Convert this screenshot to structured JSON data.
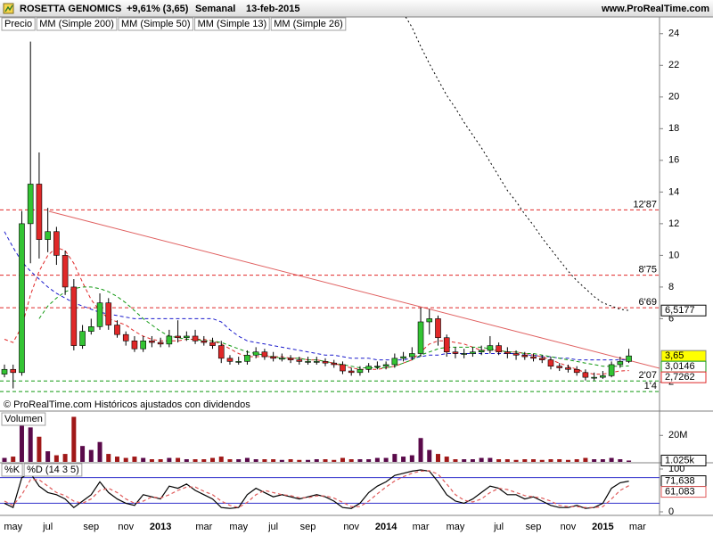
{
  "chart_data": [
    {
      "type": "candlestick",
      "title": "ROSETTA GENOMICS",
      "change": "+9,61% (3,65)",
      "period": "Semanal",
      "date": "13-feb-2015",
      "source": "www.ProRealTime.com",
      "footer": "© ProRealTime.com  Históricos ajustados con dividendos",
      "categories": [
        null,
        "may",
        null,
        null,
        null,
        "jul",
        null,
        null,
        null,
        null,
        "sep",
        null,
        null,
        null,
        "nov",
        null,
        null,
        null,
        "2013",
        null,
        null,
        null,
        null,
        "mar",
        null,
        null,
        null,
        "may",
        null,
        null,
        null,
        "jul",
        null,
        null,
        null,
        "sep",
        null,
        null,
        null,
        null,
        "nov",
        null,
        null,
        null,
        "2014",
        null,
        null,
        null,
        "mar",
        null,
        null,
        null,
        "may",
        null,
        null,
        null,
        null,
        "jul",
        null,
        null,
        null,
        "sep",
        null,
        null,
        null,
        "nov",
        null,
        null,
        null,
        "2015",
        null,
        null,
        null,
        "mar"
      ],
      "price": {
        "name": "Precio",
        "up_color": "#33c433",
        "down_color": "#e02828",
        "last_label": "3,65",
        "label_color": "#ffff00",
        "open": [
          2.5,
          2.8,
          2.6,
          12,
          14.5,
          11,
          11.5,
          10,
          8,
          4.3,
          5.2,
          5.5,
          7,
          5.6,
          5,
          4.6,
          4.1,
          4.6,
          4.5,
          4.4,
          4.9,
          4.8,
          4.9,
          4.6,
          4.5,
          4.3,
          3.5,
          3.3,
          3.3,
          3.7,
          3.9,
          3.6,
          3.5,
          3.5,
          3.4,
          3.3,
          3.3,
          3.3,
          3.2,
          3.1,
          2.7,
          2.6,
          2.8,
          3.0,
          3.0,
          3.1,
          3.5,
          3.6,
          3.8,
          5.8,
          6.0,
          4.8,
          3.9,
          3.8,
          3.8,
          3.9,
          4.0,
          4.3,
          3.9,
          3.8,
          3.7,
          3.6,
          3.5,
          3.4,
          3.0,
          2.9,
          2.8,
          2.6,
          2.3,
          2.3,
          2.4,
          3.1,
          3.3,
          null
        ],
        "high": [
          3.1,
          3.1,
          12.8,
          23.5,
          16.5,
          13,
          11.8,
          10.3,
          8.5,
          5.6,
          6.0,
          7.6,
          7.3,
          5.9,
          5.2,
          4.9,
          4.9,
          4.9,
          4.8,
          5.3,
          5.9,
          5.2,
          5.3,
          4.9,
          4.8,
          4.6,
          3.7,
          3.6,
          4.0,
          4.2,
          4.1,
          3.9,
          3.8,
          3.7,
          3.6,
          3.6,
          3.6,
          3.5,
          3.4,
          3.3,
          2.9,
          3.0,
          3.2,
          3.3,
          3.3,
          3.8,
          3.9,
          4.2,
          6.7,
          6.6,
          6.2,
          5.0,
          4.2,
          4.1,
          4.2,
          4.3,
          4.9,
          4.5,
          4.2,
          4.0,
          3.9,
          3.8,
          3.7,
          3.6,
          3.2,
          3.1,
          3.0,
          2.8,
          2.6,
          2.7,
          3.3,
          3.6,
          4.1,
          null
        ],
        "low": [
          2.3,
          1.6,
          2.4,
          9.5,
          9.8,
          10.2,
          9.4,
          7.5,
          4.0,
          4.1,
          5.0,
          5.3,
          5.3,
          4.8,
          4.3,
          3.9,
          3.9,
          4.2,
          4.2,
          4.2,
          4.5,
          4.6,
          4.4,
          4.3,
          4.1,
          3.2,
          3.1,
          3.1,
          3.1,
          3.5,
          3.4,
          3.3,
          3.3,
          3.2,
          3.1,
          3.1,
          3.1,
          3.0,
          2.9,
          2.5,
          2.4,
          2.4,
          2.6,
          2.8,
          2.8,
          2.9,
          3.3,
          3.4,
          3.6,
          5.0,
          4.3,
          3.6,
          3.5,
          3.5,
          3.6,
          3.7,
          3.8,
          3.7,
          3.5,
          3.4,
          3.4,
          3.3,
          3.2,
          2.8,
          2.7,
          2.6,
          2.4,
          2.1,
          2.1,
          2.2,
          2.3,
          2.9,
          3.2,
          null
        ],
        "close": [
          2.8,
          2.6,
          12,
          14.5,
          11,
          11.5,
          10,
          8,
          4.3,
          5.2,
          5.5,
          7,
          5.6,
          5,
          4.6,
          4.1,
          4.6,
          4.5,
          4.4,
          4.9,
          4.8,
          4.9,
          4.6,
          4.5,
          4.3,
          3.5,
          3.3,
          3.3,
          3.7,
          3.9,
          3.6,
          3.5,
          3.5,
          3.4,
          3.3,
          3.3,
          3.3,
          3.2,
          3.1,
          2.7,
          2.6,
          2.8,
          3.0,
          3.0,
          3.1,
          3.5,
          3.6,
          3.8,
          5.8,
          6.0,
          4.8,
          3.9,
          3.8,
          3.8,
          3.9,
          4.0,
          4.3,
          3.9,
          3.8,
          3.7,
          3.6,
          3.5,
          3.4,
          3.0,
          2.9,
          2.8,
          2.6,
          2.3,
          2.3,
          2.4,
          3.1,
          3.3,
          3.65,
          null
        ]
      },
      "series": [
        {
          "name": "MM (Simple 200)",
          "color": "#000000",
          "dash": "dotted",
          "end_label": "6,5177",
          "values": [
            null,
            null,
            null,
            null,
            null,
            null,
            null,
            null,
            null,
            null,
            null,
            null,
            null,
            null,
            null,
            null,
            null,
            null,
            null,
            null,
            null,
            null,
            null,
            null,
            null,
            null,
            null,
            null,
            null,
            null,
            null,
            null,
            null,
            null,
            null,
            null,
            null,
            null,
            null,
            null,
            null,
            null,
            null,
            null,
            null,
            null,
            25.3,
            24.4,
            23.2,
            22.1,
            21.1,
            20.1,
            19.3,
            18.4,
            17.6,
            16.8,
            15.9,
            15.0,
            14.1,
            13.4,
            12.6,
            11.9,
            11.1,
            10.4,
            9.7,
            9.0,
            8.4,
            7.9,
            7.4,
            7.0,
            6.8,
            6.6,
            6.5177,
            null
          ]
        },
        {
          "name": "MM (Simple 50)",
          "color": "#1a1acc",
          "dash": "dashed",
          "values": [
            11.5,
            10.5,
            9.6,
            9.0,
            8.5,
            8.0,
            7.6,
            7.3,
            7.0,
            6.8,
            6.6,
            6.4,
            6.3,
            6.2,
            6.1,
            6.0,
            6.0,
            6.0,
            6.0,
            6.0,
            6.0,
            6.0,
            6.0,
            6.0,
            6.0,
            5.8,
            5.3,
            4.9,
            4.6,
            4.5,
            4.4,
            4.3,
            4.2,
            4.1,
            4.0,
            3.9,
            3.8,
            3.7,
            3.7,
            3.6,
            3.5,
            3.5,
            3.5,
            3.4,
            3.4,
            3.4,
            3.4,
            3.5,
            3.6,
            3.7,
            3.7,
            3.8,
            3.8,
            3.8,
            3.8,
            3.8,
            3.8,
            3.8,
            3.8,
            3.8,
            3.7,
            3.7,
            3.6,
            3.6,
            3.5,
            3.5,
            3.4,
            3.4,
            3.4,
            3.4,
            3.4,
            3.4,
            3.4,
            null
          ]
        },
        {
          "name": "MM (Simple 13)",
          "color": "#e02828",
          "dash": "dashed",
          "end_label": "2,7262",
          "values": [
            4.7,
            4.5,
            5.5,
            7.5,
            9.0,
            10.0,
            10.5,
            10.3,
            9.5,
            8.3,
            7.2,
            6.5,
            6.0,
            5.8,
            5.6,
            5.2,
            4.9,
            4.7,
            4.6,
            4.6,
            4.6,
            4.7,
            4.7,
            4.7,
            4.6,
            4.4,
            4.1,
            3.8,
            3.6,
            3.6,
            3.6,
            3.6,
            3.6,
            3.5,
            3.5,
            3.4,
            3.4,
            3.3,
            3.2,
            3.0,
            2.9,
            2.8,
            2.8,
            2.8,
            2.9,
            3.0,
            3.2,
            3.4,
            3.9,
            4.4,
            4.6,
            4.6,
            4.5,
            4.4,
            4.2,
            4.0,
            4.0,
            4.0,
            3.9,
            3.9,
            3.8,
            3.7,
            3.6,
            3.4,
            3.2,
            3.0,
            2.8,
            2.6,
            2.5,
            2.5,
            2.6,
            2.7,
            2.7262,
            null
          ]
        },
        {
          "name": "MM (Simple 26)",
          "color": "#119911",
          "dash": "dashed",
          "end_label": "3,0146",
          "values": [
            null,
            null,
            null,
            null,
            6.0,
            6.8,
            7.3,
            7.7,
            7.9,
            8.0,
            8.0,
            7.9,
            7.7,
            7.4,
            7.0,
            6.5,
            6.0,
            5.6,
            5.2,
            4.9,
            4.8,
            4.7,
            4.7,
            4.6,
            4.6,
            4.5,
            4.3,
            4.1,
            3.9,
            3.8,
            3.7,
            3.6,
            3.5,
            3.5,
            3.5,
            3.4,
            3.4,
            3.3,
            3.2,
            3.1,
            3.0,
            2.9,
            2.9,
            2.9,
            2.9,
            3.0,
            3.2,
            3.4,
            3.7,
            3.9,
            4.1,
            4.2,
            4.2,
            4.2,
            4.2,
            4.2,
            4.1,
            4.0,
            3.9,
            3.9,
            3.8,
            3.8,
            3.7,
            3.6,
            3.5,
            3.4,
            3.3,
            3.2,
            3.1,
            3.0,
            3.0,
            3.0,
            3.0146,
            null
          ]
        }
      ],
      "levels": [
        {
          "value": 12.87,
          "label": "12'87",
          "color": "#e02828"
        },
        {
          "value": 8.75,
          "label": "8'75",
          "color": "#e02828"
        },
        {
          "value": 6.69,
          "label": "6'69",
          "color": "#e02828"
        },
        {
          "value": 2.07,
          "label": "2'07",
          "color": "#119911"
        },
        {
          "value": 1.4,
          "label": "1'4",
          "color": "#119911"
        }
      ],
      "ylim": [
        0.9,
        25
      ],
      "yticks": [
        2,
        6,
        8,
        10,
        12,
        14,
        16,
        18,
        20,
        22,
        24
      ]
    },
    {
      "type": "bar",
      "title": "Volumen",
      "up_color": "#5a0a4a",
      "down_color": "#a01818",
      "last_label": "1.025k",
      "values": [
        3000000,
        4000000,
        30000000,
        26000000,
        19000000,
        8000000,
        5000000,
        6000000,
        34000000,
        12000000,
        9000000,
        15000000,
        6000000,
        4000000,
        3000000,
        4000000,
        3000000,
        2000000,
        2000000,
        3000000,
        3000000,
        2000000,
        2000000,
        2000000,
        3000000,
        4000000,
        2000000,
        2000000,
        3000000,
        2000000,
        2000000,
        2000000,
        1500000,
        2000000,
        1500000,
        1500000,
        2000000,
        2000000,
        1500000,
        3000000,
        2000000,
        2000000,
        2000000,
        3000000,
        3000000,
        6000000,
        4000000,
        5000000,
        18000000,
        9000000,
        6000000,
        4000000,
        2000000,
        2000000,
        2000000,
        3000000,
        3000000,
        2000000,
        2000000,
        1500000,
        2000000,
        2000000,
        1500000,
        2000000,
        2000000,
        1500000,
        2000000,
        3000000,
        2000000,
        2000000,
        3000000,
        2000000,
        1025000,
        null
      ],
      "ylim": [
        0,
        37000000
      ],
      "yticks": [
        {
          "value": 20000000,
          "label": "20M"
        }
      ]
    },
    {
      "type": "line",
      "series": [
        {
          "name": "%K",
          "color": "#000000",
          "dash": "solid",
          "end_label": "71,638",
          "values": [
            20,
            10,
            80,
            90,
            60,
            45,
            40,
            30,
            10,
            25,
            40,
            70,
            45,
            30,
            20,
            15,
            40,
            35,
            30,
            60,
            55,
            65,
            50,
            40,
            30,
            10,
            8,
            10,
            40,
            55,
            45,
            35,
            40,
            35,
            30,
            35,
            40,
            35,
            25,
            10,
            8,
            20,
            45,
            60,
            70,
            85,
            90,
            95,
            98,
            95,
            70,
            40,
            25,
            20,
            30,
            45,
            60,
            55,
            40,
            40,
            30,
            35,
            25,
            15,
            10,
            10,
            15,
            8,
            10,
            20,
            55,
            68,
            71.638,
            null
          ]
        },
        {
          "name": "%D (14 3 5)",
          "color": "#e05a5a",
          "dash": "dashed",
          "end_label": "61,083",
          "values": [
            25,
            15,
            40,
            75,
            75,
            60,
            45,
            38,
            25,
            20,
            30,
            50,
            55,
            45,
            30,
            20,
            25,
            35,
            32,
            40,
            50,
            58,
            58,
            48,
            40,
            25,
            15,
            10,
            22,
            40,
            50,
            45,
            40,
            38,
            33,
            33,
            37,
            37,
            32,
            22,
            12,
            12,
            25,
            42,
            58,
            72,
            82,
            90,
            95,
            96,
            88,
            65,
            40,
            27,
            23,
            30,
            45,
            55,
            52,
            45,
            38,
            35,
            32,
            25,
            15,
            12,
            12,
            10,
            10,
            12,
            30,
            50,
            61.083,
            null
          ]
        }
      ],
      "bands": [
        20,
        80
      ],
      "band_color": "#3333cc",
      "ylim": [
        0,
        100
      ],
      "yticks": [
        0,
        100
      ]
    }
  ]
}
